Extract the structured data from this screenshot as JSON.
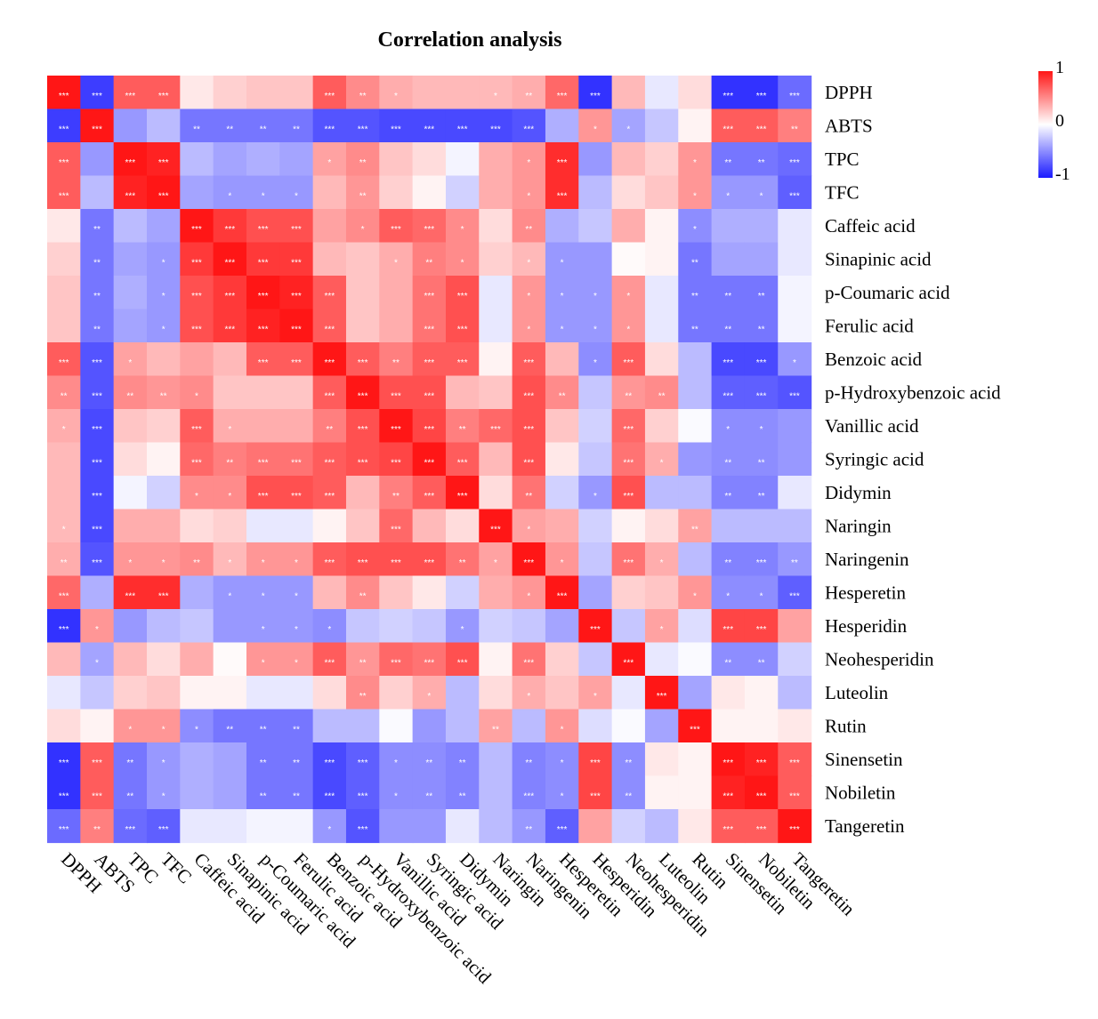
{
  "chart_data": {
    "type": "heatmap",
    "title": "Correlation analysis",
    "labels": [
      "DPPH",
      "ABTS",
      "TPC",
      "TFC",
      "Caffeic acid",
      "Sinapinic acid",
      "p-Coumaric acid",
      "Ferulic acid",
      "Benzoic acid",
      "p-Hydroxybenzoic acid",
      "Vanillic acid",
      "Syringic acid",
      "Didymin",
      "Naringin",
      "Naringenin",
      "Hesperetin",
      "Hesperidin",
      "Neohesperidin",
      "Luteolin",
      "Rutin",
      "Sinensetin",
      "Nobiletin",
      "Tangeretin"
    ],
    "values": [
      [
        1.0,
        -0.85,
        0.7,
        0.7,
        0.1,
        0.2,
        0.25,
        0.25,
        0.7,
        0.5,
        0.35,
        0.3,
        0.3,
        0.3,
        0.35,
        0.65,
        -0.9,
        0.3,
        -0.1,
        0.15,
        -0.9,
        -0.9,
        -0.65
      ],
      [
        -0.85,
        1.0,
        -0.45,
        -0.3,
        -0.6,
        -0.6,
        -0.6,
        -0.6,
        -0.75,
        -0.75,
        -0.8,
        -0.8,
        -0.8,
        -0.8,
        -0.75,
        -0.35,
        0.45,
        -0.4,
        -0.25,
        0.05,
        0.7,
        0.7,
        0.55
      ],
      [
        0.7,
        -0.45,
        1.0,
        0.95,
        -0.3,
        -0.4,
        -0.35,
        -0.4,
        0.4,
        0.5,
        0.25,
        0.15,
        -0.05,
        0.35,
        0.45,
        0.9,
        -0.45,
        0.3,
        0.2,
        0.45,
        -0.6,
        -0.6,
        -0.65
      ],
      [
        0.7,
        -0.3,
        0.95,
        1.0,
        -0.4,
        -0.45,
        -0.45,
        -0.45,
        0.3,
        0.45,
        0.2,
        0.05,
        -0.2,
        0.35,
        0.45,
        0.9,
        -0.3,
        0.15,
        0.25,
        0.45,
        -0.45,
        -0.45,
        -0.7
      ],
      [
        0.1,
        -0.6,
        -0.3,
        -0.4,
        1.0,
        0.85,
        0.75,
        0.75,
        0.4,
        0.5,
        0.7,
        0.65,
        0.5,
        0.15,
        0.5,
        -0.35,
        -0.25,
        0.35,
        0.05,
        -0.5,
        -0.35,
        -0.35,
        -0.1
      ],
      [
        0.2,
        -0.6,
        -0.4,
        -0.45,
        0.85,
        1.0,
        0.85,
        0.85,
        0.3,
        0.25,
        0.35,
        0.55,
        0.5,
        0.2,
        0.3,
        -0.45,
        -0.45,
        0.02,
        0.05,
        -0.6,
        -0.4,
        -0.4,
        -0.1
      ],
      [
        0.25,
        -0.6,
        -0.35,
        -0.45,
        0.75,
        0.85,
        1.0,
        0.95,
        0.7,
        0.25,
        0.35,
        0.6,
        0.75,
        -0.1,
        0.45,
        -0.45,
        -0.45,
        0.45,
        -0.1,
        -0.6,
        -0.6,
        -0.6,
        -0.05
      ],
      [
        0.25,
        -0.6,
        -0.4,
        -0.45,
        0.75,
        0.85,
        0.95,
        1.0,
        0.7,
        0.25,
        0.35,
        0.6,
        0.75,
        -0.1,
        0.45,
        -0.45,
        -0.45,
        0.45,
        -0.1,
        -0.6,
        -0.6,
        -0.6,
        -0.05
      ],
      [
        0.7,
        -0.75,
        0.4,
        0.3,
        0.4,
        0.3,
        0.7,
        0.7,
        1.0,
        0.7,
        0.55,
        0.7,
        0.7,
        0.05,
        0.7,
        0.3,
        -0.5,
        0.7,
        0.15,
        -0.3,
        -0.8,
        -0.8,
        -0.45
      ],
      [
        0.5,
        -0.75,
        0.5,
        0.45,
        0.5,
        0.25,
        0.25,
        0.25,
        0.7,
        1.0,
        0.75,
        0.75,
        0.3,
        0.25,
        0.75,
        0.5,
        -0.25,
        0.45,
        0.5,
        -0.3,
        -0.7,
        -0.7,
        -0.75
      ],
      [
        0.35,
        -0.8,
        0.25,
        0.2,
        0.7,
        0.35,
        0.35,
        0.35,
        0.55,
        0.75,
        1.0,
        0.8,
        0.55,
        0.65,
        0.75,
        0.25,
        -0.2,
        0.65,
        0.2,
        -0.02,
        -0.5,
        -0.5,
        -0.45
      ],
      [
        0.3,
        -0.8,
        0.15,
        0.05,
        0.65,
        0.55,
        0.6,
        0.6,
        0.7,
        0.75,
        0.8,
        1.0,
        0.7,
        0.3,
        0.75,
        0.1,
        -0.25,
        0.6,
        0.35,
        -0.45,
        -0.5,
        -0.5,
        -0.45
      ],
      [
        0.3,
        -0.8,
        -0.05,
        -0.2,
        0.5,
        0.5,
        0.75,
        0.75,
        0.7,
        0.3,
        0.55,
        0.7,
        1.0,
        0.15,
        0.6,
        -0.2,
        -0.45,
        0.75,
        -0.3,
        -0.3,
        -0.55,
        -0.55,
        -0.1
      ],
      [
        0.3,
        -0.8,
        0.35,
        0.35,
        0.15,
        0.2,
        -0.1,
        -0.1,
        0.05,
        0.25,
        0.65,
        0.3,
        0.15,
        1.0,
        0.4,
        0.35,
        -0.2,
        0.05,
        0.15,
        0.4,
        -0.3,
        -0.3,
        -0.3
      ],
      [
        0.35,
        -0.75,
        0.45,
        0.45,
        0.5,
        0.3,
        0.45,
        0.45,
        0.7,
        0.75,
        0.75,
        0.75,
        0.6,
        0.4,
        1.0,
        0.45,
        -0.25,
        0.6,
        0.35,
        -0.3,
        -0.55,
        -0.55,
        -0.45
      ],
      [
        0.65,
        -0.35,
        0.9,
        0.9,
        -0.35,
        -0.45,
        -0.45,
        -0.45,
        0.3,
        0.5,
        0.25,
        0.1,
        -0.2,
        0.35,
        0.45,
        1.0,
        -0.4,
        0.2,
        0.25,
        0.45,
        -0.5,
        -0.5,
        -0.7
      ],
      [
        -0.9,
        0.45,
        -0.45,
        -0.3,
        -0.25,
        -0.45,
        -0.45,
        -0.45,
        -0.5,
        -0.25,
        -0.2,
        -0.25,
        -0.45,
        -0.2,
        -0.25,
        -0.4,
        1.0,
        -0.25,
        0.4,
        -0.15,
        0.8,
        0.8,
        0.4
      ],
      [
        0.3,
        -0.4,
        0.3,
        0.15,
        0.35,
        0.02,
        0.45,
        0.45,
        0.7,
        0.45,
        0.65,
        0.6,
        0.75,
        0.05,
        0.6,
        0.2,
        -0.25,
        1.0,
        -0.1,
        -0.02,
        -0.5,
        -0.5,
        -0.2
      ],
      [
        -0.1,
        -0.25,
        0.2,
        0.25,
        0.05,
        0.05,
        -0.1,
        -0.1,
        0.15,
        0.5,
        0.2,
        0.35,
        -0.3,
        0.15,
        0.35,
        0.25,
        0.4,
        -0.1,
        1.0,
        -0.4,
        0.1,
        0.05,
        -0.3
      ],
      [
        0.15,
        0.05,
        0.45,
        0.45,
        -0.5,
        -0.6,
        -0.6,
        -0.6,
        -0.3,
        -0.3,
        -0.02,
        -0.45,
        -0.3,
        0.4,
        -0.3,
        0.45,
        -0.15,
        -0.02,
        -0.4,
        1.0,
        0.05,
        0.05,
        0.1
      ],
      [
        -0.9,
        0.7,
        -0.6,
        -0.45,
        -0.35,
        -0.4,
        -0.6,
        -0.6,
        -0.8,
        -0.7,
        -0.5,
        -0.5,
        -0.55,
        -0.3,
        -0.55,
        -0.5,
        0.8,
        -0.5,
        0.1,
        0.05,
        1.0,
        0.95,
        0.7
      ],
      [
        -0.9,
        0.7,
        -0.6,
        -0.45,
        -0.35,
        -0.4,
        -0.6,
        -0.6,
        -0.8,
        -0.7,
        -0.5,
        -0.5,
        -0.55,
        -0.3,
        -0.55,
        -0.5,
        0.8,
        -0.5,
        0.05,
        0.05,
        0.95,
        1.0,
        0.7
      ],
      [
        -0.65,
        0.55,
        -0.65,
        -0.7,
        -0.1,
        -0.1,
        -0.05,
        -0.05,
        -0.45,
        -0.75,
        -0.45,
        -0.45,
        -0.1,
        -0.3,
        -0.45,
        -0.7,
        0.4,
        -0.2,
        -0.3,
        0.1,
        0.7,
        0.7,
        1.0
      ]
    ],
    "significance": [
      [
        "***",
        "***",
        "***",
        "***",
        "",
        "",
        "",
        "",
        "***",
        "**",
        "*",
        "",
        "",
        "*",
        "**",
        "***",
        "***",
        "",
        "",
        "",
        "***",
        "***",
        "***"
      ],
      [
        "***",
        "***",
        "",
        "",
        "**",
        "**",
        "**",
        "**",
        "***",
        "***",
        "***",
        "***",
        "***",
        "***",
        "***",
        "",
        "*",
        "*",
        "",
        "",
        "***",
        "***",
        "**"
      ],
      [
        "***",
        "",
        "***",
        "***",
        "",
        "",
        "",
        "",
        "*",
        "**",
        "",
        "",
        "",
        "",
        "*",
        "***",
        "",
        "",
        "",
        "*",
        "**",
        "**",
        "***"
      ],
      [
        "***",
        "",
        "***",
        "***",
        "",
        "*",
        "*",
        "*",
        "",
        "**",
        "",
        "",
        "",
        "",
        "*",
        "***",
        "",
        "",
        "",
        "*",
        "*",
        "*",
        "***"
      ],
      [
        "",
        "**",
        "",
        "",
        "***",
        "***",
        "***",
        "***",
        "",
        "*",
        "***",
        "***",
        "*",
        "",
        "**",
        "",
        "",
        "",
        "",
        "*",
        "",
        "",
        ""
      ],
      [
        "",
        "**",
        "",
        "*",
        "***",
        "***",
        "***",
        "***",
        "",
        "",
        "*",
        "**",
        "*",
        "",
        "*",
        "*",
        "",
        "",
        "",
        "**",
        "",
        "",
        ""
      ],
      [
        "",
        "**",
        "",
        "*",
        "***",
        "***",
        "***",
        "***",
        "***",
        "",
        "",
        "***",
        "***",
        "",
        "*",
        "*",
        "*",
        "*",
        "",
        "**",
        "**",
        "**",
        ""
      ],
      [
        "",
        "**",
        "",
        "*",
        "***",
        "***",
        "***",
        "***",
        "***",
        "",
        "",
        "***",
        "***",
        "",
        "*",
        "*",
        "*",
        "*",
        "",
        "**",
        "**",
        "**",
        ""
      ],
      [
        "***",
        "***",
        "*",
        "",
        "",
        "",
        "***",
        "***",
        "***",
        "***",
        "**",
        "***",
        "***",
        "",
        "***",
        "",
        "*",
        "***",
        "",
        "",
        "***",
        "***",
        "*"
      ],
      [
        "**",
        "***",
        "**",
        "**",
        "*",
        "",
        "",
        "",
        "***",
        "***",
        "***",
        "***",
        "",
        "",
        "***",
        "**",
        "",
        "**",
        "**",
        "",
        "***",
        "***",
        "***"
      ],
      [
        "*",
        "***",
        "",
        "",
        "***",
        "*",
        "",
        "",
        "**",
        "***",
        "***",
        "***",
        "**",
        "***",
        "***",
        "",
        "",
        "***",
        "",
        "",
        "*",
        "*",
        ""
      ],
      [
        "",
        "***",
        "",
        "",
        "***",
        "**",
        "***",
        "***",
        "***",
        "***",
        "***",
        "***",
        "***",
        "",
        "***",
        "",
        "",
        "***",
        "*",
        "",
        "**",
        "**",
        ""
      ],
      [
        "",
        "***",
        "",
        "",
        "*",
        "*",
        "***",
        "***",
        "***",
        "",
        "**",
        "***",
        "***",
        "",
        "**",
        "",
        "*",
        "***",
        "",
        "",
        "**",
        "**",
        ""
      ],
      [
        "*",
        "***",
        "",
        "",
        "",
        "",
        "",
        "",
        "",
        "",
        "***",
        "",
        "",
        "***",
        "*",
        "",
        "",
        "",
        "",
        "**",
        "",
        "",
        ""
      ],
      [
        "**",
        "***",
        "*",
        "*",
        "**",
        "*",
        "*",
        "*",
        "***",
        "***",
        "***",
        "***",
        "**",
        "*",
        "***",
        "*",
        "",
        "***",
        "*",
        "",
        "**",
        "***",
        "**"
      ],
      [
        "***",
        "",
        "***",
        "***",
        "",
        "*",
        "*",
        "*",
        "",
        "**",
        "",
        "",
        "",
        "",
        "*",
        "***",
        "",
        "",
        "",
        "*",
        "*",
        "*",
        "***"
      ],
      [
        "***",
        "*",
        "",
        "",
        "",
        "",
        "*",
        "*",
        "*",
        "",
        "",
        "",
        "*",
        "",
        "",
        "",
        "***",
        "",
        "*",
        "",
        "***",
        "***",
        ""
      ],
      [
        "",
        "*",
        "",
        "",
        "",
        "",
        "*",
        "*",
        "***",
        "**",
        "***",
        "***",
        "***",
        "",
        "***",
        "",
        "",
        "***",
        "",
        "",
        "**",
        "**",
        ""
      ],
      [
        "",
        "",
        "",
        "",
        "",
        "",
        "",
        "",
        "",
        "**",
        "",
        "*",
        "",
        "",
        "*",
        "",
        "*",
        "",
        "***",
        "",
        "",
        "",
        ""
      ],
      [
        "",
        "",
        "*",
        "*",
        "*",
        "**",
        "**",
        "**",
        "",
        "",
        "",
        "",
        "",
        "**",
        "",
        "*",
        "",
        "",
        "",
        "***",
        "",
        "",
        ""
      ],
      [
        "***",
        "***",
        "**",
        "*",
        "",
        "",
        "**",
        "**",
        "***",
        "***",
        "*",
        "**",
        "**",
        "",
        "**",
        "*",
        "***",
        "**",
        "",
        "",
        "***",
        "***",
        "***"
      ],
      [
        "***",
        "***",
        "**",
        "*",
        "",
        "",
        "**",
        "**",
        "***",
        "***",
        "*",
        "**",
        "**",
        "",
        "***",
        "*",
        "***",
        "**",
        "",
        "",
        "***",
        "***",
        "***"
      ],
      [
        "***",
        "**",
        "***",
        "***",
        "",
        "",
        "",
        "",
        "*",
        "***",
        "",
        "",
        "",
        "",
        "**",
        "***",
        "",
        "",
        "",
        "",
        "***",
        "***",
        "***"
      ]
    ],
    "color_scale": {
      "min": -1,
      "max": 1,
      "low_color": "#1b1bff",
      "mid_color": "#ffffff",
      "high_color": "#ff1616"
    },
    "legend": {
      "max_label": "1",
      "mid_label": "0",
      "min_label": "-1",
      "placement": "top-right"
    }
  }
}
